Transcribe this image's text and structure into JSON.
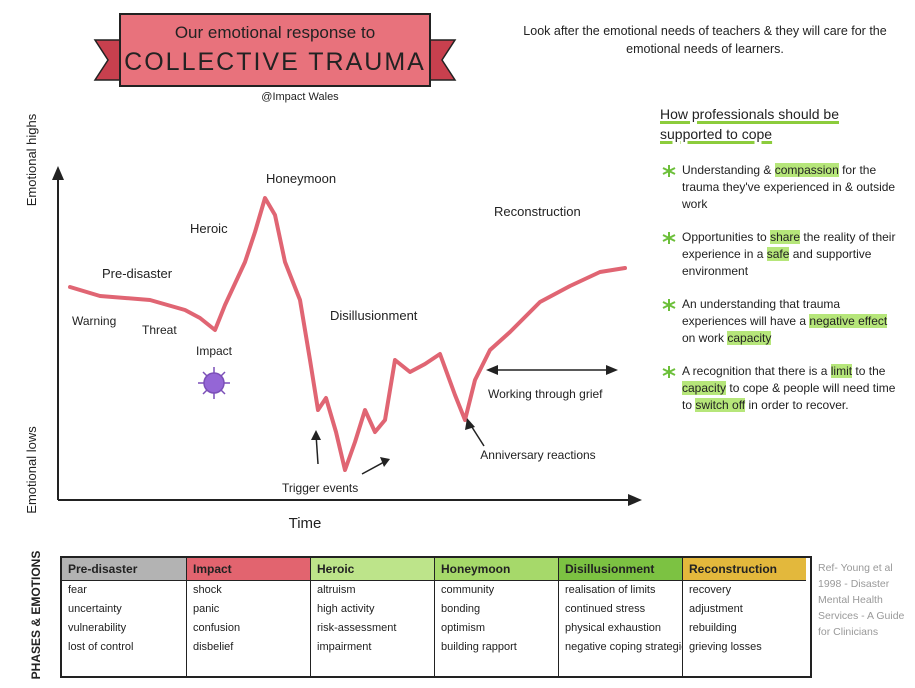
{
  "header": {
    "title_line1": "Our emotional response to",
    "title_line2": "COLLECTIVE TRAUMA",
    "handle": "@Impact Wales",
    "quote": "Look after the emotional needs of teachers & they will care for the emotional needs of learners."
  },
  "diagram": {
    "y_axis_high": "Emotional highs",
    "y_axis_low": "Emotional lows",
    "x_axis": "Time",
    "stages": {
      "warning": "Warning",
      "threat": "Threat",
      "pre_disaster": "Pre-disaster",
      "impact": "Impact",
      "heroic": "Heroic",
      "honeymoon": "Honeymoon",
      "disillusionment": "Disillusionment",
      "trigger_events": "Trigger events",
      "anniversary_reactions": "Anniversary reactions",
      "working_through_grief": "Working through grief",
      "reconstruction": "Reconstruction"
    }
  },
  "support": {
    "title": "How professionals should be supported to cope",
    "highlight_color": "#b6e67a",
    "points": [
      {
        "parts": [
          "Understanding & ",
          "compassion",
          " for the trauma they've experienced in & outside work"
        ],
        "highlight": [
          1
        ]
      },
      {
        "parts": [
          "Opportunities to ",
          "share",
          " the reality of their experience in a ",
          "safe",
          " and supportive environment"
        ],
        "highlight": [
          1,
          3
        ]
      },
      {
        "parts": [
          "An understanding that trauma experiences will have a ",
          "negative effect",
          " on work ",
          "capacity"
        ],
        "highlight": [
          1,
          3
        ]
      },
      {
        "parts": [
          "A recognition that there is a ",
          "limit",
          " to the ",
          "capacity",
          " to cope & people will need time to ",
          "switch off",
          " in order to recover."
        ],
        "highlight": [
          1,
          3,
          5
        ]
      }
    ]
  },
  "table": {
    "side_label": "PHASES & EMOTIONS",
    "columns": [
      {
        "phase": "Pre-disaster",
        "color": "#b3b3b3",
        "emotions": [
          "fear",
          "uncertainty",
          "vulnerability",
          "lost of control"
        ]
      },
      {
        "phase": "Impact",
        "color": "#e2646f",
        "emotions": [
          "shock",
          "panic",
          "confusion",
          "disbelief"
        ]
      },
      {
        "phase": "Heroic",
        "color": "#bde48a",
        "emotions": [
          "altruism",
          "high activity",
          "risk-assessment",
          "impairment"
        ]
      },
      {
        "phase": "Honeymoon",
        "color": "#a6d96a",
        "emotions": [
          "community",
          "bonding",
          "optimism",
          "building rapport"
        ]
      },
      {
        "phase": "Disillusionment",
        "color": "#7cc242",
        "emotions": [
          "realisation of limits",
          "continued stress",
          "physical exhaustion",
          "negative coping strategies"
        ]
      },
      {
        "phase": "Reconstruction",
        "color": "#e3b83c",
        "emotions": [
          "recovery",
          "adjustment",
          "rebuilding",
          "grieving losses"
        ]
      }
    ]
  },
  "reference": "Ref- Young et al 1998 - Disaster Mental Health Services - A Guide for Clinicians"
}
